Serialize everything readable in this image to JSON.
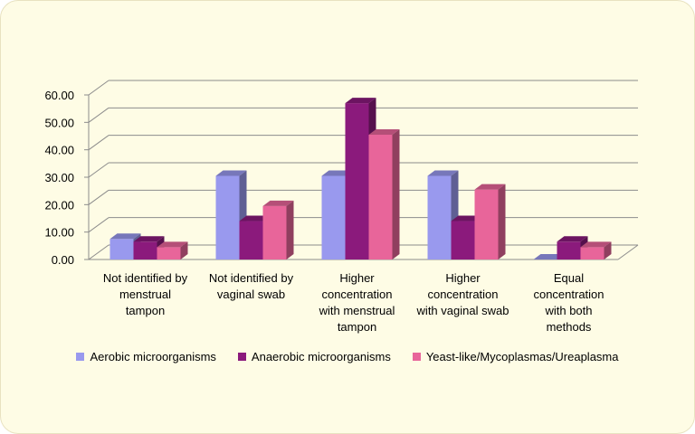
{
  "chart_data": {
    "type": "bar",
    "categories": [
      [
        "Not identified by",
        "menstrual",
        "tampon"
      ],
      [
        "Not identified by",
        "vaginal swab"
      ],
      [
        "Higher",
        "concentration",
        "with menstrual",
        "tampon"
      ],
      [
        "Higher",
        "concentration",
        "with vaginal swab"
      ],
      [
        "Equal",
        "concentration",
        "with both",
        "methods"
      ]
    ],
    "series": [
      {
        "name": "Aerobic microorganisms",
        "values": [
          7.5,
          30.5,
          30.5,
          30.5,
          0
        ],
        "color": "#9999ee"
      },
      {
        "name": "Anaerobic microorganisms",
        "values": [
          6.5,
          14,
          57,
          14,
          6.5
        ],
        "color": "#8b1a7c"
      },
      {
        "name": "Yeast-like/Mycoplasmas/Ureaplasma",
        "values": [
          4.5,
          19.5,
          45.5,
          25.5,
          4.5
        ],
        "color": "#e8659a"
      }
    ],
    "yticks": [
      "0.00",
      "10.00",
      "20.00",
      "30.00",
      "40.00",
      "50.00",
      "60.00"
    ],
    "ylim": [
      0,
      60
    ],
    "grid": true,
    "legend_position": "bottom"
  }
}
